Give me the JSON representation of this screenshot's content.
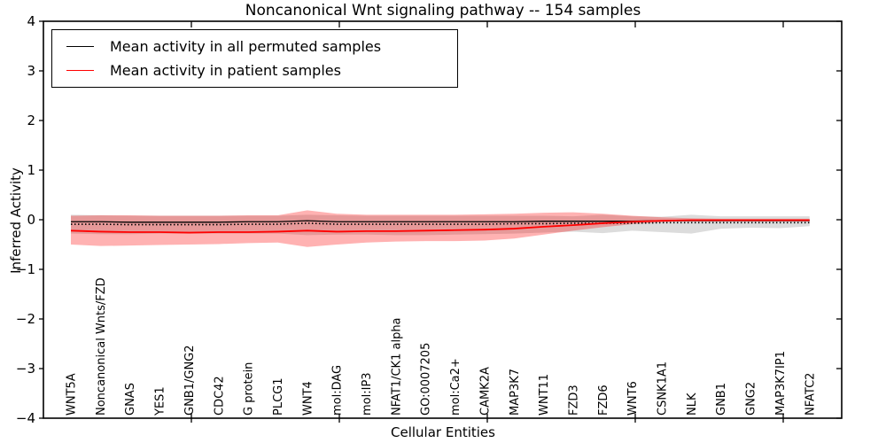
{
  "title": "Noncanonical Wnt signaling pathway -- 154 samples",
  "legend": {
    "items": [
      {
        "label": "Mean activity in all permuted samples",
        "color": "#000000"
      },
      {
        "label": "Mean activity in patient samples",
        "color": "#ff0000"
      }
    ]
  },
  "axes": {
    "ylabel": "Inferred Activity",
    "xlabel": "Cellular Entities",
    "ytick_labels": [
      "4",
      "3",
      "2",
      "1",
      "0",
      "−1",
      "−2",
      "−3",
      "−4"
    ]
  },
  "chart_data": {
    "type": "line",
    "title": "Noncanonical Wnt signaling pathway -- 154 samples",
    "xlabel": "Cellular Entities",
    "ylabel": "Inferred Activity",
    "ylim": [
      -4,
      4
    ],
    "yticks": [
      4,
      3,
      2,
      1,
      0,
      -1,
      -2,
      -3,
      -4
    ],
    "grid": false,
    "legend_position": "upper left",
    "categories": [
      "WNT5A",
      "Noncanonical Wnts/FZD",
      "GNAS",
      "YES1",
      "GNB1/GNG2",
      "CDC42",
      "G protein",
      "PLCG1",
      "WNT4",
      "mol:DAG",
      "mol:IP3",
      "NFAT1/CK1 alpha",
      "GO:0007205",
      "mol:Ca2+",
      "CAMK2A",
      "MAP3K7",
      "WNT11",
      "FZD3",
      "FZD6",
      "WNT6",
      "CSNK1A1",
      "NLK",
      "GNB1",
      "GNG2",
      "MAP3K7IP1",
      "NFATC2"
    ],
    "series": [
      {
        "name": "Mean activity in all permuted samples",
        "color": "#000000",
        "style": "solid",
        "values": [
          -0.04,
          -0.04,
          -0.05,
          -0.05,
          -0.05,
          -0.05,
          -0.04,
          -0.04,
          -0.02,
          -0.04,
          -0.04,
          -0.04,
          -0.04,
          -0.04,
          -0.04,
          -0.04,
          -0.03,
          -0.03,
          -0.03,
          -0.03,
          -0.02,
          -0.02,
          -0.02,
          -0.02,
          -0.02,
          -0.02
        ]
      },
      {
        "name": "Permuted samples dotted reference",
        "color": "#000000",
        "style": "dotted",
        "values": [
          -0.09,
          -0.09,
          -0.1,
          -0.1,
          -0.1,
          -0.1,
          -0.09,
          -0.09,
          -0.07,
          -0.09,
          -0.09,
          -0.09,
          -0.09,
          -0.09,
          -0.09,
          -0.08,
          -0.08,
          -0.07,
          -0.07,
          -0.07,
          -0.06,
          -0.06,
          -0.06,
          -0.06,
          -0.06,
          -0.06
        ]
      },
      {
        "name": "Mean activity in patient samples",
        "color": "#ff0000",
        "style": "solid",
        "values": [
          -0.22,
          -0.24,
          -0.25,
          -0.25,
          -0.26,
          -0.25,
          -0.25,
          -0.24,
          -0.22,
          -0.24,
          -0.23,
          -0.23,
          -0.22,
          -0.21,
          -0.2,
          -0.18,
          -0.14,
          -0.11,
          -0.07,
          -0.04,
          -0.02,
          -0.01,
          -0.01,
          -0.01,
          -0.01,
          -0.01
        ]
      }
    ],
    "bands": [
      {
        "name": "permuted-samples-band",
        "color": "#dcdcdc",
        "opacity": 1.0,
        "upper": [
          0.1,
          0.09,
          0.08,
          0.08,
          0.08,
          0.08,
          0.08,
          0.08,
          0.1,
          0.09,
          0.08,
          0.08,
          0.08,
          0.08,
          0.08,
          0.08,
          0.08,
          0.07,
          0.1,
          0.07,
          0.06,
          0.1,
          0.07,
          0.07,
          0.07,
          0.07
        ],
        "lower": [
          -0.28,
          -0.29,
          -0.29,
          -0.28,
          -0.28,
          -0.28,
          -0.28,
          -0.28,
          -0.31,
          -0.3,
          -0.3,
          -0.31,
          -0.31,
          -0.3,
          -0.29,
          -0.28,
          -0.26,
          -0.24,
          -0.27,
          -0.22,
          -0.25,
          -0.28,
          -0.18,
          -0.16,
          -0.17,
          -0.13
        ]
      },
      {
        "name": "patient-samples-band",
        "color": "#ff0000",
        "opacity": 0.3,
        "upper": [
          0.08,
          0.09,
          0.09,
          0.08,
          0.08,
          0.08,
          0.09,
          0.09,
          0.19,
          0.12,
          0.1,
          0.1,
          0.1,
          0.1,
          0.11,
          0.12,
          0.14,
          0.15,
          0.12,
          0.08,
          0.05,
          0.03,
          0.02,
          0.02,
          0.02,
          0.02
        ],
        "lower": [
          -0.5,
          -0.53,
          -0.52,
          -0.51,
          -0.5,
          -0.49,
          -0.47,
          -0.46,
          -0.55,
          -0.5,
          -0.46,
          -0.44,
          -0.43,
          -0.43,
          -0.42,
          -0.38,
          -0.3,
          -0.22,
          -0.15,
          -0.09,
          -0.05,
          -0.02,
          -0.02,
          -0.02,
          -0.02,
          -0.02
        ]
      }
    ]
  }
}
